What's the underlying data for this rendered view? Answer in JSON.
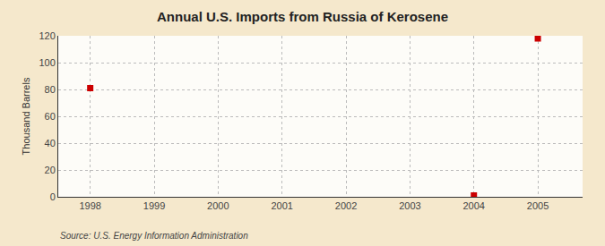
{
  "chart_data": {
    "type": "scatter",
    "title": "Annual U.S. Imports from Russia of Kerosene",
    "ylabel": "Thousand Barrels",
    "annotations": [
      "Source: U.S. Energy Information Administration"
    ],
    "x": [
      1998,
      2004,
      2005
    ],
    "values": [
      81,
      1,
      118
    ],
    "color": "#cc0000",
    "marker": "square",
    "xlim": [
      1997.5,
      2005.7
    ],
    "ylim": [
      0,
      120
    ],
    "xticks": [
      1998,
      1999,
      2000,
      2001,
      2002,
      2003,
      2004,
      2005
    ],
    "yticks": [
      0,
      20,
      40,
      60,
      80,
      100,
      120
    ],
    "grid": true
  }
}
